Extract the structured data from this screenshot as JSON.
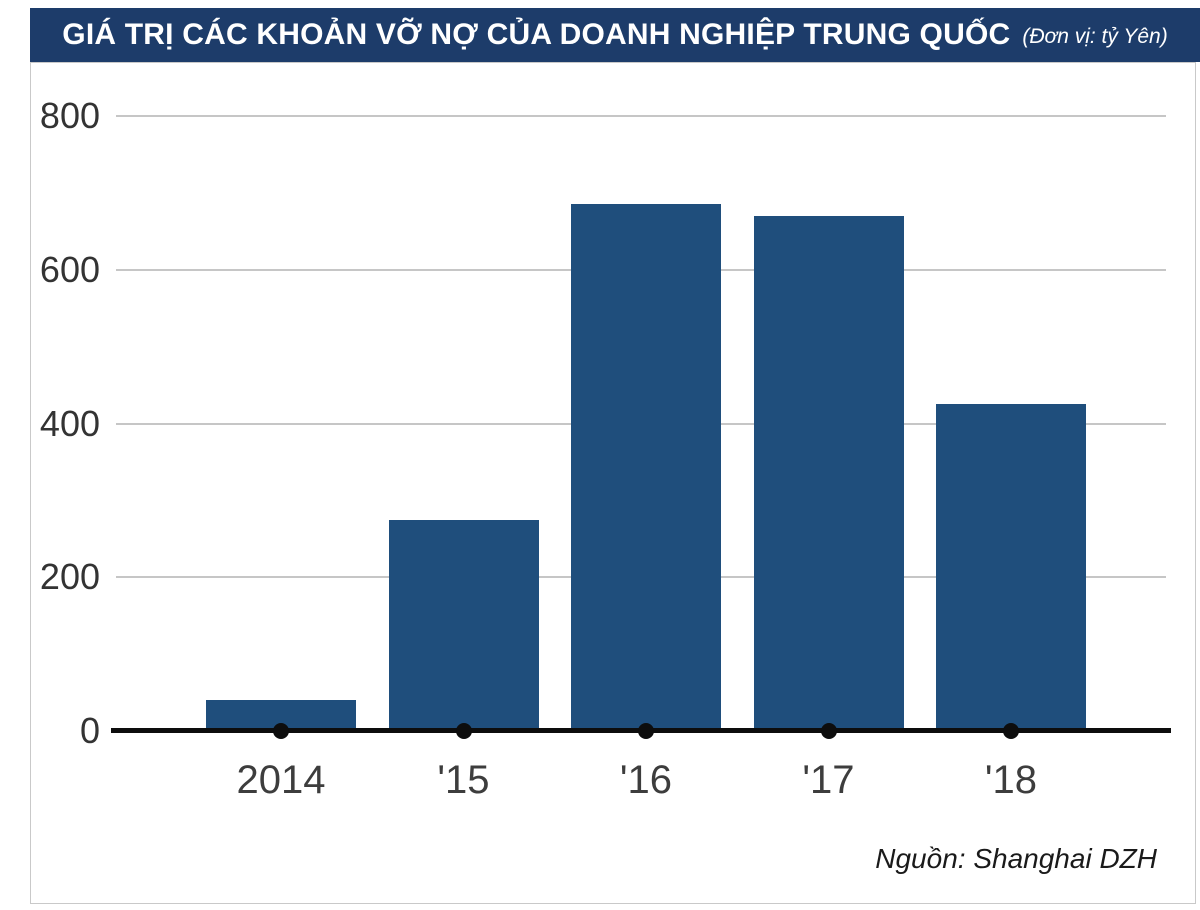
{
  "header": {
    "title": "GIÁ TRỊ CÁC KHOẢN VỠ NỢ CỦA DOANH NGHIỆP TRUNG QUỐC",
    "unit": "(Đơn vị: tỷ Yên)",
    "background_color": "#1d3c6a",
    "text_color": "#ffffff"
  },
  "chart_data": {
    "type": "bar",
    "title": "GIÁ TRỊ CÁC KHOẢN VỠ NỢ CỦA DOANH NGHIỆP TRUNG QUỐC",
    "unit_label": "(Đơn vị: tỷ Yên)",
    "categories": [
      "2014",
      "'15",
      "'16",
      "'17",
      "'18"
    ],
    "values": [
      40,
      275,
      685,
      670,
      425
    ],
    "xlabel": "",
    "ylabel": "",
    "ylim": [
      0,
      800
    ],
    "yticks": [
      0,
      200,
      400,
      600,
      800
    ],
    "grid": true,
    "legend": "none",
    "bar_color": "#1f4e7c",
    "gridline_color": "#c6c6c6",
    "axis_color": "#0d0d0d",
    "source": "Nguồn: Shanghai DZH"
  },
  "footer": {
    "source": "Nguồn: Shanghai DZH"
  }
}
